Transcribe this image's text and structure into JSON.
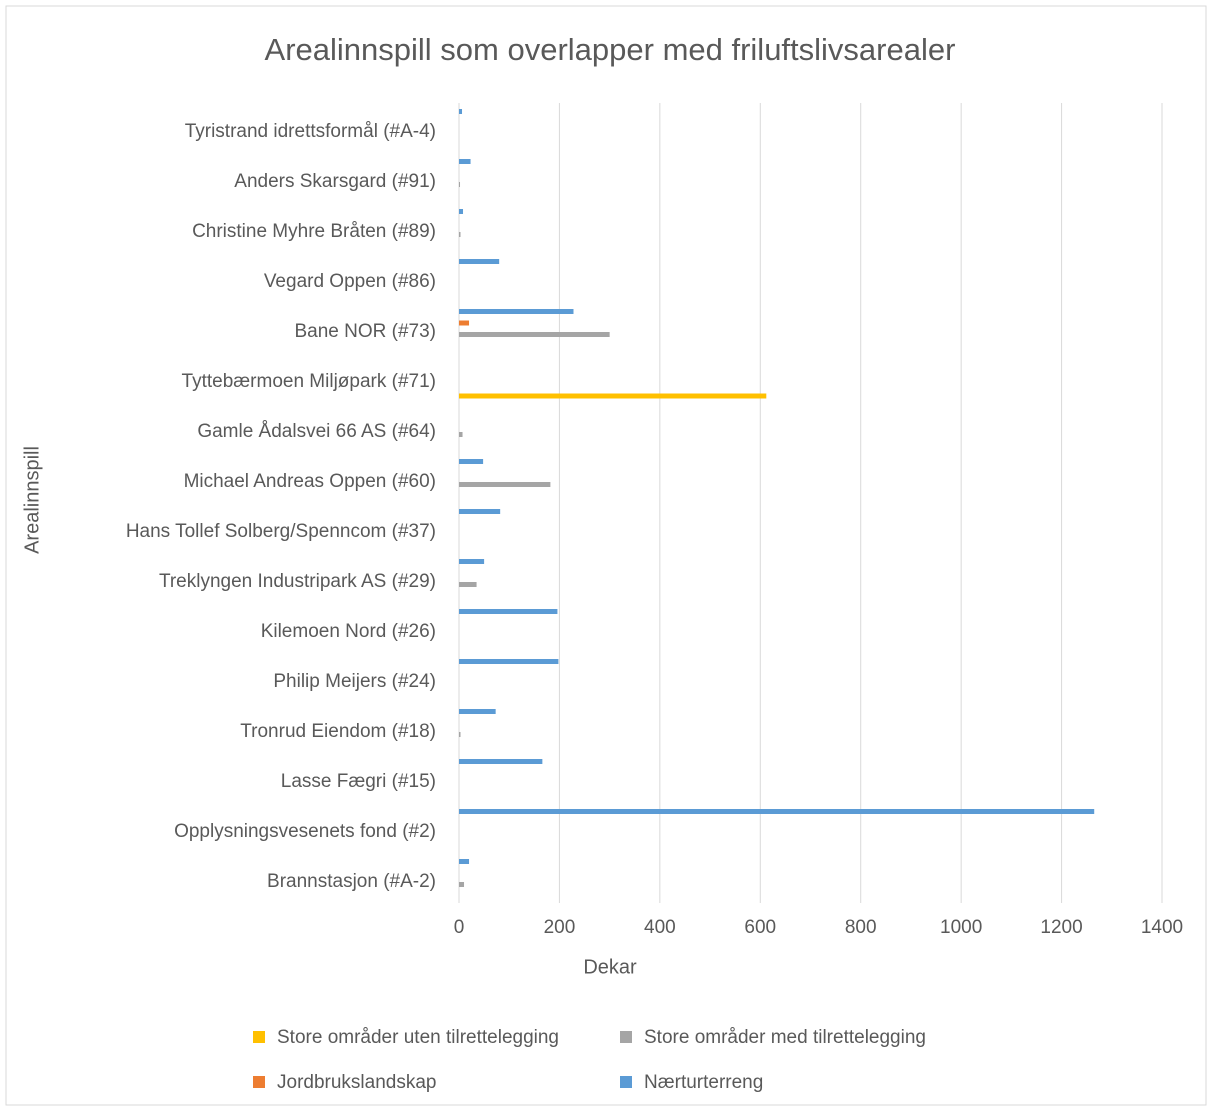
{
  "chart_data": {
    "type": "hbar",
    "title": "Arealinnspill som overlapper med friluftslivsarealer",
    "x_label": "Dekar",
    "y_label": "Arealinnspill",
    "categories": [
      "Brannstasjon (#A-2)",
      "Opplysningsvesenets fond (#2)",
      "Lasse Fægri (#15)",
      "Tronrud Eiendom (#18)",
      "Philip Meijers (#24)",
      "Kilemoen Nord (#26)",
      "Treklyngen Industripark AS (#29)",
      "Hans Tollef Solberg/Spenncom (#37)",
      "Michael Andreas Oppen (#60)",
      "Gamle Ådalsvei 66 AS (#64)",
      "Tyttebærmoen Miljøpark (#71)",
      "Bane NOR (#73)",
      "Vegard Oppen (#86)",
      "Christine Myhre Bråten (#89)",
      "Anders Skarsgard (#91)",
      "Tyristrand idrettsformål (#A-4)"
    ],
    "series": [
      {
        "name": "Store områder uten tilrettelegging",
        "color": "#ffc000",
        "values": [
          0,
          0,
          0,
          0,
          0,
          0,
          0,
          0,
          0,
          0,
          612,
          0,
          0,
          0,
          0,
          0
        ]
      },
      {
        "name": "Store områder med tilrettelegging",
        "color": "#a5a5a5",
        "values": [
          10,
          0,
          0,
          3,
          0,
          0,
          35,
          0,
          182,
          7,
          0,
          300,
          0,
          3,
          2,
          0
        ]
      },
      {
        "name": "Jordbrukslandskap",
        "color": "#ed7d31",
        "values": [
          0,
          0,
          0,
          0,
          0,
          0,
          0,
          0,
          0,
          0,
          0,
          20,
          0,
          0,
          0,
          0
        ]
      },
      {
        "name": "Nærturterreng",
        "color": "#5b9bd5",
        "values": [
          20,
          1265,
          166,
          73,
          198,
          196,
          50,
          82,
          48,
          0,
          0,
          228,
          80,
          8,
          23,
          6
        ]
      }
    ],
    "xlim": [
      0,
      1400
    ],
    "xticks": [
      0,
      200,
      400,
      600,
      800,
      1000,
      1200,
      1400
    ],
    "grid": true
  }
}
